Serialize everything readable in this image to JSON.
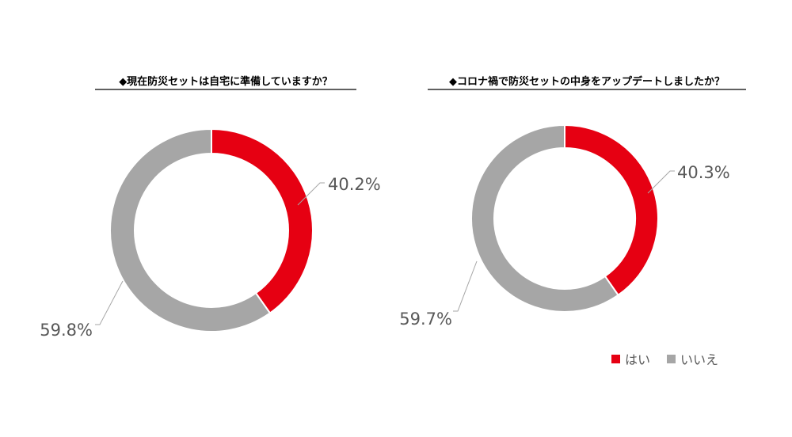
{
  "chart_data": [
    {
      "type": "pie",
      "title": "◆現在防災セットは自宅に準備していますか？",
      "categories": [
        "はい",
        "いいえ"
      ],
      "values": [
        40.2,
        59.8
      ],
      "labels": [
        "40.2%",
        "59.8%"
      ],
      "colors": [
        "#e60012",
        "#a6a6a6"
      ]
    },
    {
      "type": "pie",
      "title": "◆コロナ禍で防災セットの中身をアップデートしましたか？",
      "categories": [
        "はい",
        "いいえ"
      ],
      "values": [
        40.3,
        59.7
      ],
      "labels": [
        "40.3%",
        "59.7%"
      ],
      "colors": [
        "#e60012",
        "#a6a6a6"
      ]
    }
  ],
  "legend": {
    "placement": "bottom-right",
    "items": [
      {
        "label": "はい",
        "color": "#e60012"
      },
      {
        "label": "いいえ",
        "color": "#a6a6a6"
      }
    ]
  }
}
